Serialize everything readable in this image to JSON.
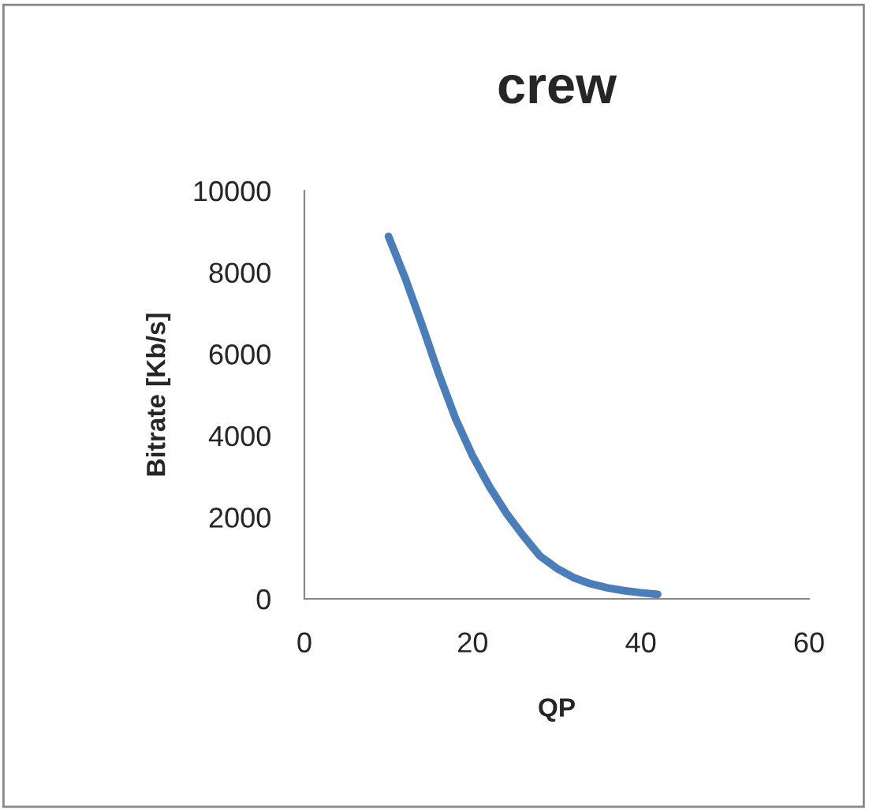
{
  "chart_data": {
    "type": "line",
    "title": "crew",
    "xlabel": "QP",
    "ylabel": "Bitrate [Kb/s]",
    "series": [
      {
        "color": "#4a7ebb",
        "x": [
          10,
          12,
          14,
          16,
          18,
          20,
          22,
          24,
          26,
          28,
          30,
          32,
          34,
          36,
          38,
          40,
          42
        ],
        "values": [
          8880,
          7850,
          6700,
          5500,
          4400,
          3500,
          2750,
          2100,
          1550,
          1050,
          750,
          520,
          370,
          270,
          200,
          150,
          110
        ]
      }
    ],
    "xlim": [
      0,
      60
    ],
    "xticks": [
      0,
      20,
      40,
      60
    ],
    "ylim": [
      0,
      10000
    ],
    "yticks": [
      0,
      2000,
      4000,
      6000,
      8000,
      10000
    ],
    "grid": false,
    "legend": false,
    "marker": "none",
    "line_style": "solid"
  }
}
